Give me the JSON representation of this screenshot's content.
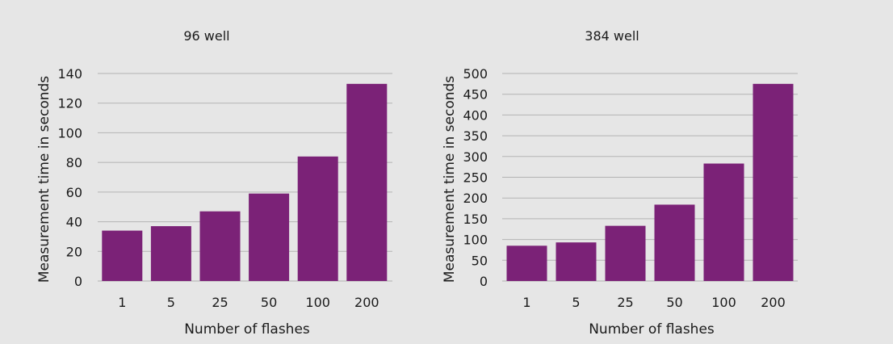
{
  "chart_data": [
    {
      "type": "bar",
      "title": "96 well",
      "xlabel": "Number of flashes",
      "ylabel": "Measurement time in seconds",
      "categories": [
        "1",
        "5",
        "25",
        "50",
        "100",
        "200"
      ],
      "values": [
        34,
        37,
        47,
        59,
        84,
        133
      ],
      "ylim": [
        0,
        140
      ],
      "yticks": [
        0,
        20,
        40,
        60,
        80,
        100,
        120,
        140
      ],
      "grid": true,
      "bar_color": "#7b2277"
    },
    {
      "type": "bar",
      "title": "384 well",
      "xlabel": "Number of flashes",
      "ylabel": "Measurement time in seconds",
      "categories": [
        "1",
        "5",
        "25",
        "50",
        "100",
        "200"
      ],
      "values": [
        85,
        93,
        133,
        184,
        283,
        475
      ],
      "ylim": [
        0,
        500
      ],
      "yticks": [
        0,
        50,
        100,
        150,
        200,
        250,
        300,
        350,
        400,
        450,
        500
      ],
      "grid": true,
      "bar_color": "#7b2277"
    }
  ]
}
